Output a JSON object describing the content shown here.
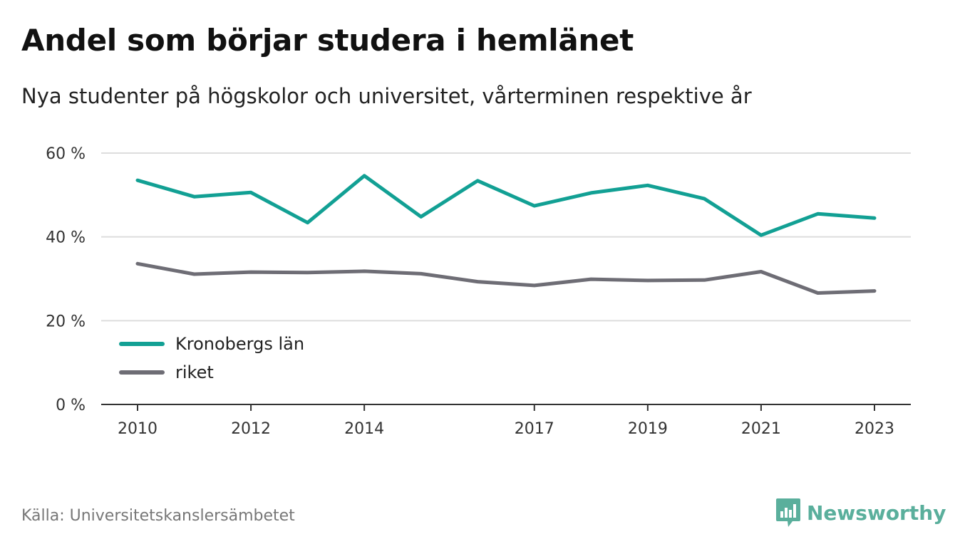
{
  "title": "Andel som börjar studera i hemlänet",
  "subtitle": "Nya studenter på högskolor och universitet, vårterminen respektive år",
  "source": "Källa: Universitetskanslersämbetet",
  "brand": {
    "name": "Newsworthy",
    "icon": "newsworthy-logo-icon",
    "color": "#5aaf9c"
  },
  "colors": {
    "grid": "#dddddd",
    "axis": "#333333",
    "text": "#333333"
  },
  "chart_data": {
    "type": "line",
    "title": "Andel som börjar studera i hemlänet",
    "x": [
      2010,
      2011,
      2012,
      2013,
      2014,
      2015,
      2016,
      2017,
      2018,
      2019,
      2020,
      2021,
      2022,
      2023
    ],
    "x_tick_labels": [
      "2010",
      "2012",
      "2014",
      "2017",
      "2019",
      "2021",
      "2023"
    ],
    "y_tick_labels": [
      "0 %",
      "20 %",
      "40 %",
      "60 %"
    ],
    "y_ticks": [
      0,
      20,
      40,
      60
    ],
    "ylim": [
      0,
      60
    ],
    "grid": true,
    "legend_position": "bottom-left",
    "series": [
      {
        "name": "Kronobergs län",
        "color": "#12a094",
        "values": [
          53.5,
          49.6,
          50.6,
          43.4,
          54.6,
          44.8,
          53.4,
          47.4,
          50.5,
          52.3,
          49.1,
          40.4,
          45.5,
          44.5
        ]
      },
      {
        "name": "riket",
        "color": "#6e6d75",
        "values": [
          33.6,
          31.1,
          31.6,
          31.5,
          31.8,
          31.2,
          29.3,
          28.4,
          29.9,
          29.6,
          29.7,
          31.7,
          26.6,
          27.1
        ]
      }
    ]
  }
}
